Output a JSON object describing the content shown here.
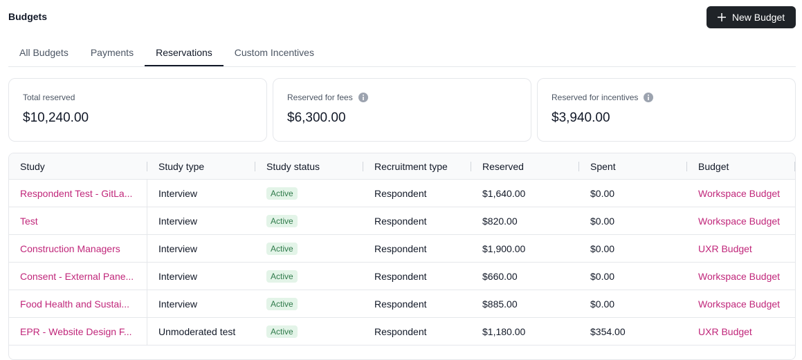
{
  "header": {
    "title": "Budgets",
    "button": "New Budget"
  },
  "tabs": [
    "All Budgets",
    "Payments",
    "Reservations",
    "Custom Incentives"
  ],
  "active_tab": 2,
  "cards": [
    {
      "label": "Total reserved",
      "value": "$10,240.00",
      "info": false
    },
    {
      "label": "Reserved for fees",
      "value": "$6,300.00",
      "info": true
    },
    {
      "label": "Reserved for incentives",
      "value": "$3,940.00",
      "info": true
    }
  ],
  "table": {
    "columns": [
      "Study",
      "Study type",
      "Study status",
      "Recruitment type",
      "Reserved",
      "Spent",
      "Budget"
    ],
    "rows": [
      [
        "Respondent Test - GitLa...",
        "Interview",
        "Active",
        "Respondent",
        "$1,640.00",
        "$0.00",
        "Workspace Budget"
      ],
      [
        "Test",
        "Interview",
        "Active",
        "Respondent",
        "$820.00",
        "$0.00",
        "Workspace Budget"
      ],
      [
        "Construction Managers",
        "Interview",
        "Active",
        "Respondent",
        "$1,900.00",
        "$0.00",
        "UXR Budget"
      ],
      [
        "Consent - External Pane...",
        "Interview",
        "Active",
        "Respondent",
        "$660.00",
        "$0.00",
        "Workspace Budget"
      ],
      [
        "Food Health and Sustai...",
        "Interview",
        "Active",
        "Respondent",
        "$885.00",
        "$0.00",
        "Workspace Budget"
      ],
      [
        "EPR - Website Design F...",
        "Unmoderated test",
        "Active",
        "Respondent",
        "$1,180.00",
        "$354.00",
        "UXR Budget"
      ]
    ]
  }
}
